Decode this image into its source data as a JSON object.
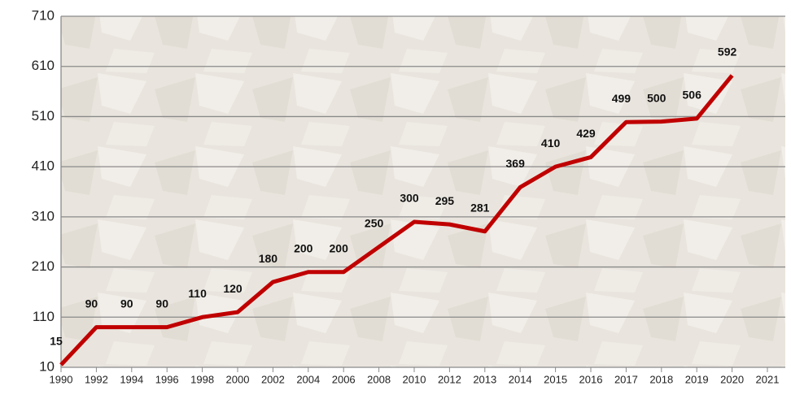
{
  "chart_data": {
    "type": "line",
    "categories": [
      "1990",
      "1992",
      "1994",
      "1996",
      "1998",
      "2000",
      "2002",
      "2004",
      "2006",
      "2008",
      "2010",
      "2012",
      "2013",
      "2014",
      "2015",
      "2016",
      "2017",
      "2018",
      "2019",
      "2020",
      "2021"
    ],
    "series": [
      {
        "color": "#c00000",
        "values": [
          15,
          90,
          90,
          90,
          110,
          120,
          180,
          200,
          200,
          250,
          300,
          295,
          281,
          369,
          410,
          429,
          499,
          500,
          506,
          592,
          null
        ]
      }
    ],
    "ylim": [
      10,
      710
    ],
    "yticks": [
      10,
      110,
      210,
      310,
      410,
      510,
      610,
      710
    ],
    "grid": true,
    "data_labels": true
  }
}
